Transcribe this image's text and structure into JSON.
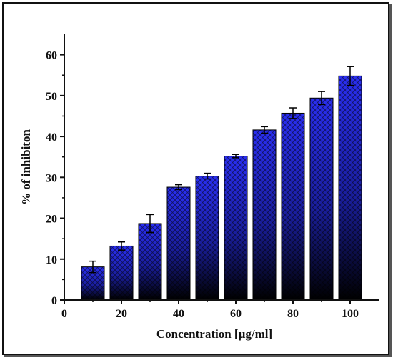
{
  "chart_data": {
    "type": "bar",
    "xlabel": "Concentration [µg/ml]",
    "ylabel": "% of inhibiton",
    "x": [
      10,
      20,
      30,
      40,
      50,
      60,
      70,
      80,
      90,
      100
    ],
    "values": [
      8.1,
      13.2,
      18.7,
      27.6,
      30.3,
      35.2,
      41.6,
      45.7,
      49.4,
      54.8
    ],
    "errors": [
      1.4,
      1.0,
      2.2,
      0.6,
      0.7,
      0.4,
      0.8,
      1.3,
      1.6,
      2.3
    ],
    "xlim": [
      0,
      110
    ],
    "ylim": [
      0,
      65
    ],
    "xticks": [
      0,
      20,
      40,
      60,
      80,
      100
    ],
    "yticks": [
      0,
      10,
      20,
      30,
      40,
      50,
      60
    ],
    "bar_width": 8,
    "bar_color_top": "#2a2ff2",
    "bar_color_bottom": "#000000",
    "hatch": "crosshatch",
    "grid": false
  }
}
